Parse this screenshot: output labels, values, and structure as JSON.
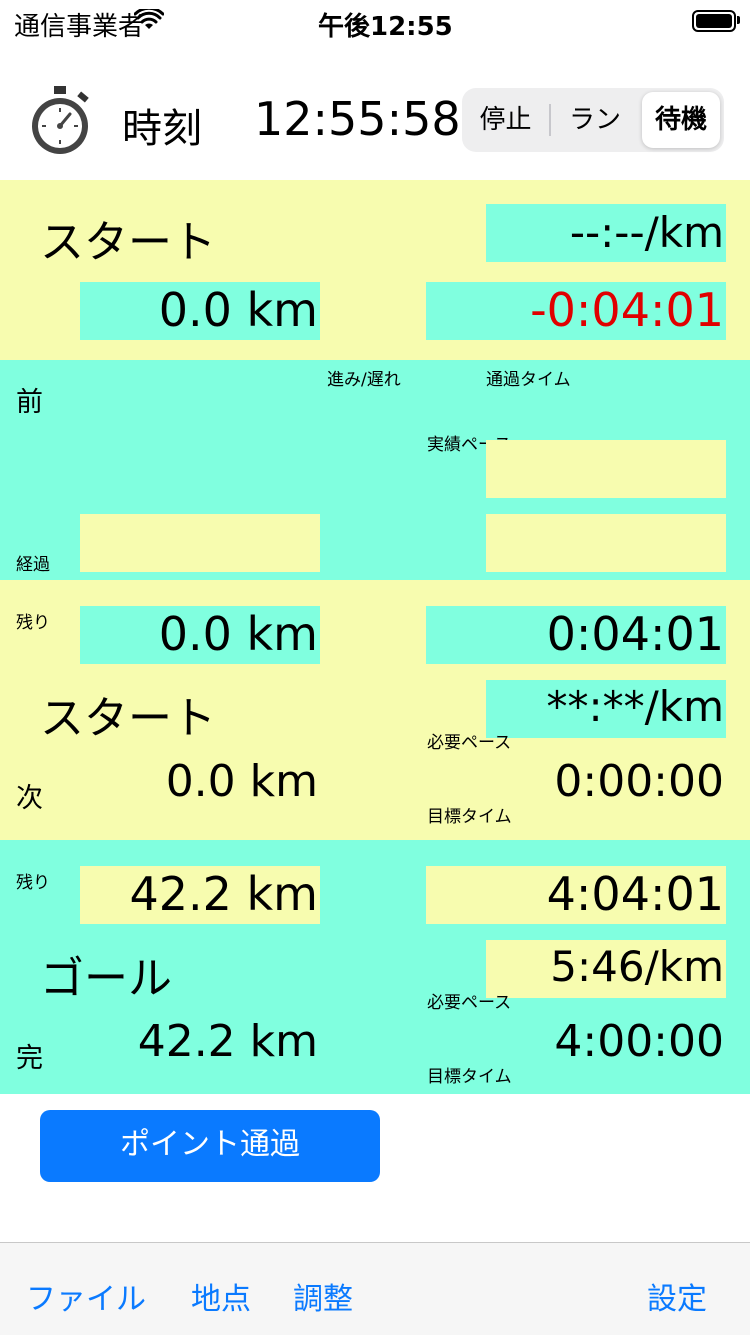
{
  "status_bar": {
    "carrier": "通信事業者",
    "time": "午後12:55"
  },
  "header": {
    "label": "時刻",
    "clock": "12:55:58",
    "modes": [
      "停止",
      "ラン",
      "待機"
    ],
    "selected_mode": "待機"
  },
  "start": {
    "name": "スタート",
    "pace": "--:--/km",
    "distance": "0.0 km",
    "diff": "-0:04:01",
    "diff_color": "#e00000"
  },
  "previous": {
    "label": "前",
    "adv_delay_label": "進み/遅れ",
    "passage_time_label": "通過タイム",
    "actual_pace_label": "実績ペース",
    "elapsed_label": "経過",
    "elapsed_value": "",
    "actual_pace_value": "",
    "passage_time_value": ""
  },
  "next": {
    "remaining_label": "残り",
    "remaining_distance": "0.0 km",
    "remaining_time": "0:04:01",
    "name": "スタート",
    "required_pace": "**:**/km",
    "required_pace_label": "必要ペース",
    "label": "次",
    "distance": "0.0 km",
    "target_time": "0:00:00",
    "target_time_label": "目標タイム"
  },
  "goal": {
    "remaining_label": "残り",
    "remaining_distance": "42.2 km",
    "remaining_time": "4:04:01",
    "name": "ゴール",
    "required_pace": "5:46/km",
    "required_pace_label": "必要ペース",
    "label": "完",
    "distance": "42.2 km",
    "target_time": "4:00:00",
    "target_time_label": "目標タイム"
  },
  "point_button": "ポイント通過",
  "toolbar": {
    "file": "ファイル",
    "point": "地点",
    "adjust": "調整",
    "settings": "設定"
  },
  "colors": {
    "yellow": "#f7fcaf",
    "cyan": "#80ffdf",
    "blue": "#0a7aff",
    "red": "#e00000"
  }
}
